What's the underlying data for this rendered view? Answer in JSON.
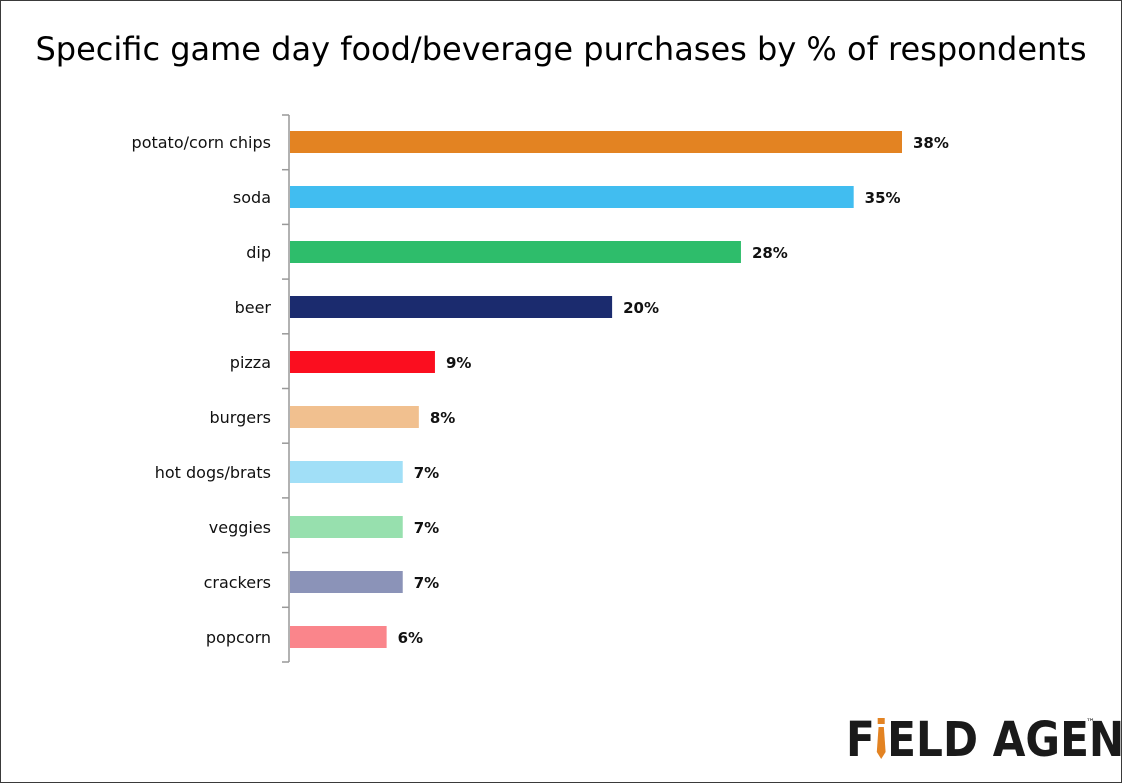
{
  "chart_data": {
    "type": "bar",
    "orientation": "horizontal",
    "title": "Specific game day food/beverage purchases by % of respondents",
    "categories": [
      "potato/corn chips",
      "soda",
      "dip",
      "beer",
      "pizza",
      "burgers",
      "hot dogs/brats",
      "veggies",
      "crackers",
      "popcorn"
    ],
    "values": [
      38,
      35,
      28,
      20,
      9,
      8,
      7,
      7,
      7,
      6
    ],
    "value_labels": [
      "38%",
      "35%",
      "28%",
      "20%",
      "9%",
      "8%",
      "7%",
      "7%",
      "7%",
      "6%"
    ],
    "colors": [
      "#E38322",
      "#41BDF0",
      "#2EBD6B",
      "#1B2B6E",
      "#FB0E1F",
      "#F1C08F",
      "#A1DFF7",
      "#97E0AE",
      "#8B93B8",
      "#FA858B"
    ],
    "xlabel": "",
    "ylabel": "",
    "xlim": [
      0,
      40
    ],
    "grid": false,
    "legend": "none"
  },
  "logo": {
    "text_before": "F",
    "text_after": "ELD AGENT",
    "trademark": "™",
    "tie_color": "#E38322"
  },
  "colors": {
    "axis": "#999999",
    "text": "#111111"
  }
}
